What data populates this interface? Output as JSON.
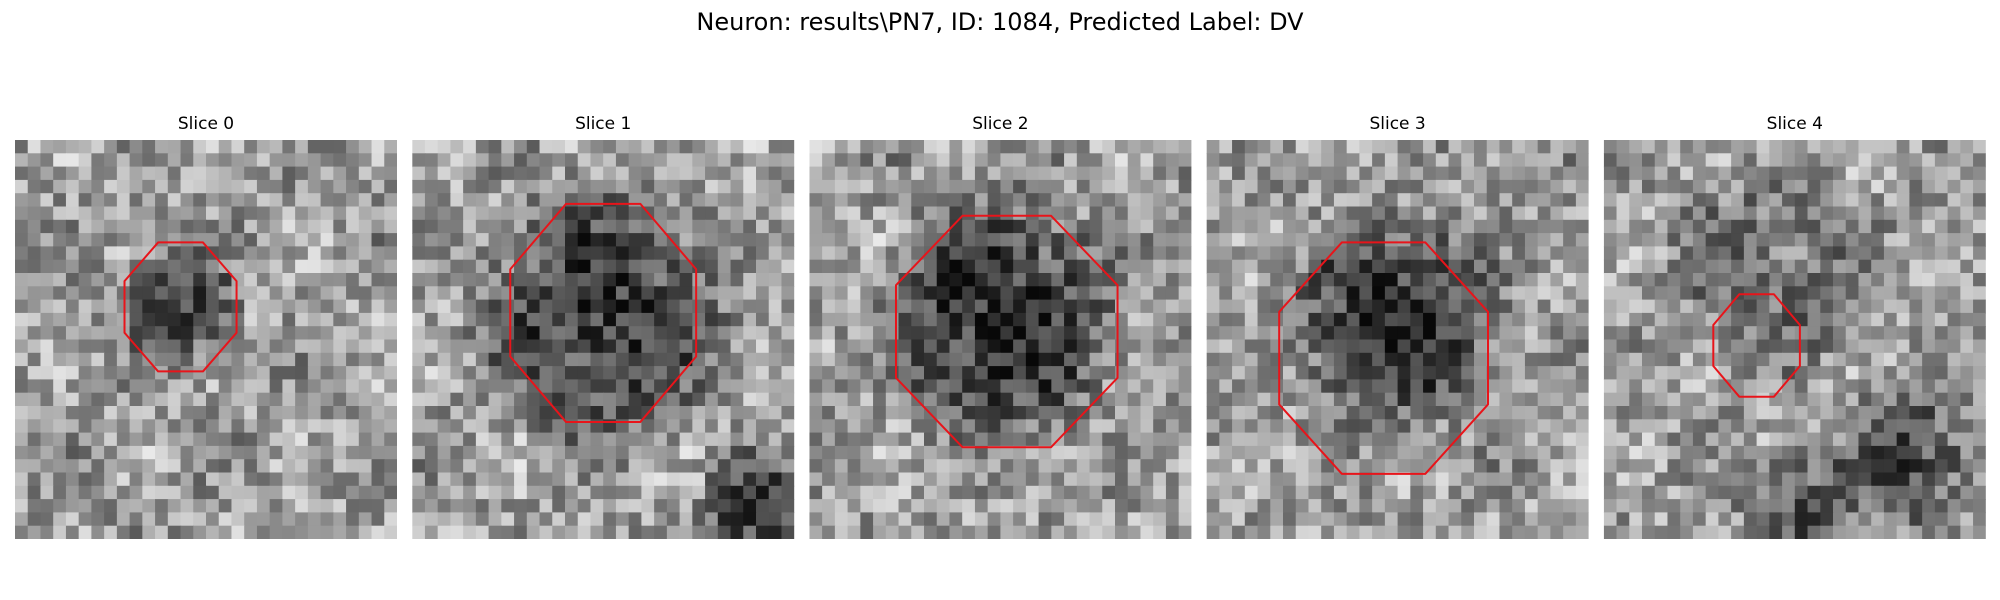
{
  "title": "Neuron: results\\PN7, ID: 1084, Predicted Label: DV",
  "panels": [
    {
      "title": "Slice 0"
    },
    {
      "title": "Slice 1"
    },
    {
      "title": "Slice 2"
    },
    {
      "title": "Slice 3"
    },
    {
      "title": "Slice 4"
    }
  ]
}
